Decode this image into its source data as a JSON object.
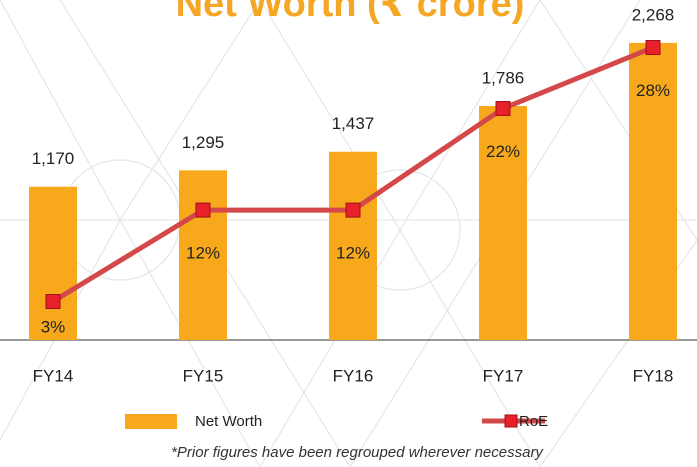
{
  "chart_data": {
    "type": "bar",
    "title": "Net Worth (₹ crore)",
    "categories": [
      "FY14",
      "FY15",
      "FY16",
      "FY17",
      "FY18"
    ],
    "series": [
      {
        "name": "Net Worth",
        "type": "bar",
        "color": "#f7a81b",
        "values": [
          1170,
          1295,
          1437,
          1786,
          2268
        ],
        "value_labels": [
          "1,170",
          "1,295",
          "1,437",
          "1,786",
          "2,268"
        ]
      },
      {
        "name": "RoE",
        "type": "line",
        "axis": "y2",
        "color": "#d5484a",
        "marker_color": "#e8202a",
        "values": [
          3,
          12,
          12,
          22,
          28
        ],
        "value_labels": [
          "3%",
          "12%",
          "12%",
          "22%",
          "28%"
        ]
      }
    ],
    "footnote": "*Prior figures have been regrouped wherever necessary"
  }
}
